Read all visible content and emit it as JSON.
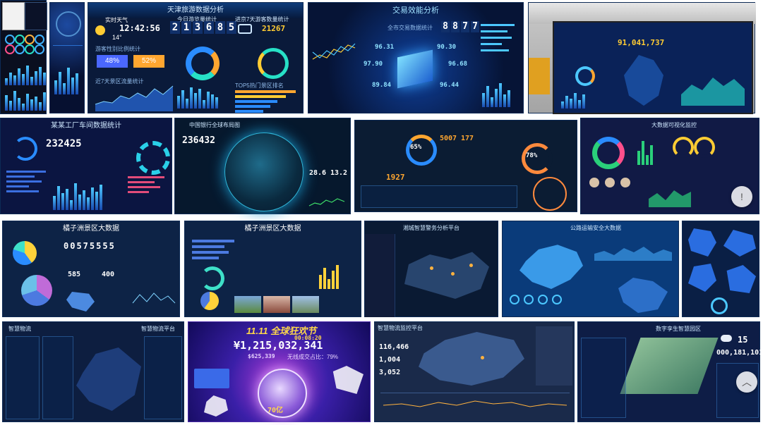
{
  "grid": {
    "row1": [
      {
        "id": "t1",
        "label": ""
      },
      {
        "id": "t2",
        "label": ""
      },
      {
        "id": "t3",
        "title": "天津旅游数据分析",
        "weather_label": "实时天气",
        "time": "12:42:56",
        "temp": "14°",
        "counter": [
          "2",
          "1",
          "3",
          "6",
          "8",
          "5"
        ],
        "counter_label": "今日游览量统计",
        "car_count": "21267",
        "car_label": "进京7天游客数量统计",
        "pct_a": "48%",
        "pct_b": "52%",
        "visitors_label": "游客性别比例统计",
        "seven_days": "近7天景区流量统计",
        "rank_label": "TOP5热门景区排名"
      },
      {
        "id": "t4",
        "title": "交易效能分析",
        "value": [
          "8",
          "8",
          "7",
          "7"
        ],
        "value_label": "全市交易数据统计",
        "nodes": [
          "96.31",
          "90.30",
          "97.90",
          "96.68",
          "89.84",
          "96.44"
        ]
      },
      {
        "id": "t5",
        "big_number": "91,041,737"
      }
    ],
    "row2": [
      {
        "id": "t6",
        "title": "某某工厂车间数据统计",
        "number": "232425"
      },
      {
        "id": "t7",
        "title": "中国银行全球布局图",
        "number": "236432",
        "temps": [
          "28.6",
          "13.2"
        ]
      },
      {
        "id": "t8",
        "pct": "65%",
        "stats": [
          "1927",
          "5007",
          "177"
        ],
        "pct2": "78%"
      },
      {
        "id": "t9",
        "title": "大数据可视化监控"
      }
    ],
    "row3": [
      {
        "id": "t10",
        "title": "橘子洲景区大数据",
        "counter": "00575555",
        "values": [
          "585",
          "400"
        ]
      },
      {
        "id": "t11",
        "title": "橘子洲景区大数据"
      },
      {
        "id": "t12",
        "title": "湘城智慧警务分析平台"
      },
      {
        "id": "t13",
        "title": "公路运输安全大数据"
      },
      {
        "id": "t14",
        "title": ""
      }
    ],
    "row4": [
      {
        "id": "t15",
        "title": "智慧物流",
        "right": "智慧物流平台"
      },
      {
        "id": "t16",
        "title": "11.11 全球狂欢节",
        "time": "00:08:20",
        "amount": "¥1,215,032,341",
        "sub": "$625,339",
        "sub2": "无线成交占比：79%",
        "badge": "70亿"
      },
      {
        "id": "t17",
        "title": "智慧物流监控平台",
        "stats": [
          "116,466",
          "1,004",
          "3,052"
        ]
      },
      {
        "id": "t18",
        "title": "数字孪生智慧园区",
        "number": "000,181,101",
        "day": "15"
      }
    ]
  },
  "ui": {
    "fab_more": "!",
    "fab_up": "︿"
  }
}
